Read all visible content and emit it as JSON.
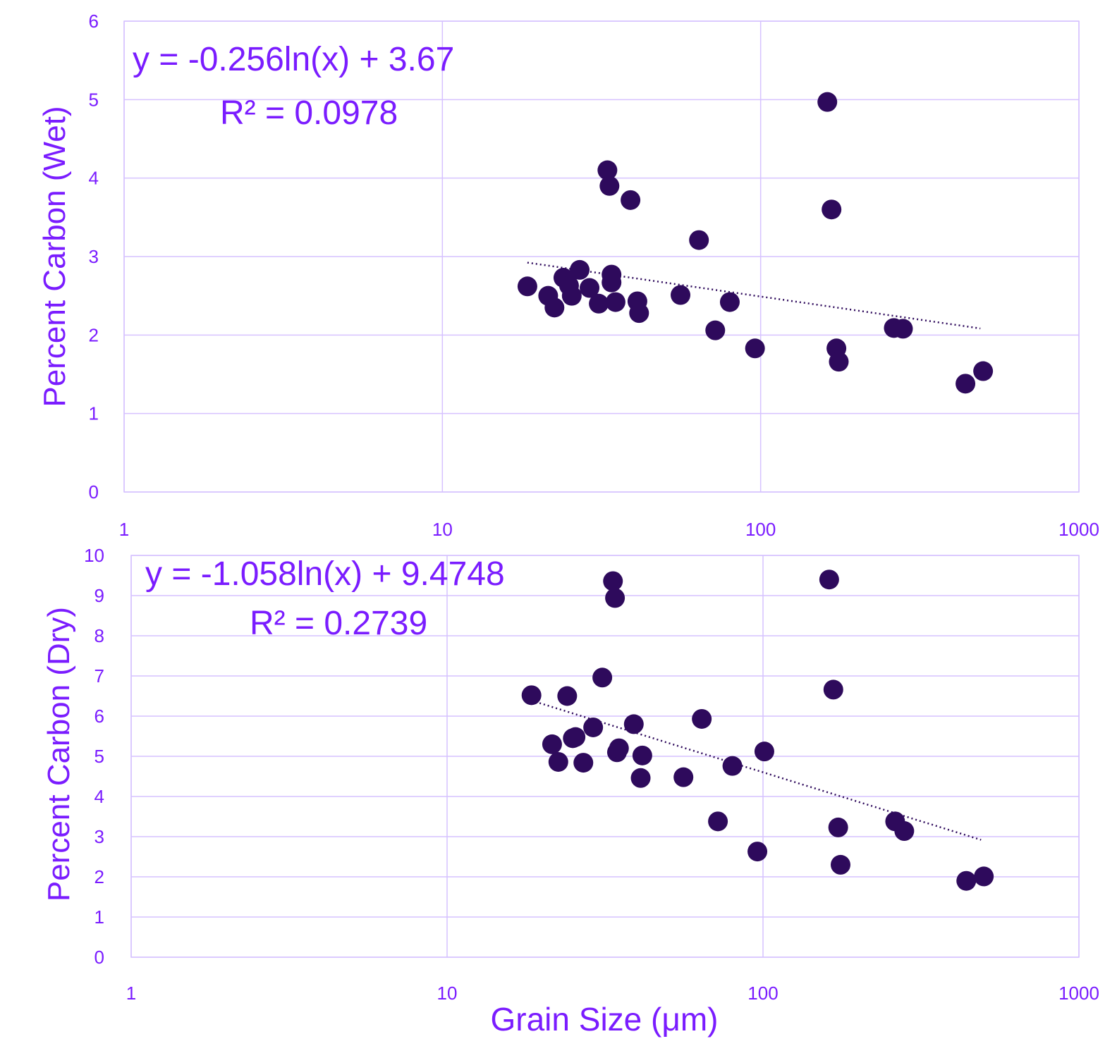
{
  "colors": {
    "marker": "#2e0a5c",
    "text": "#7a1cff",
    "grid": "#d6c2ff",
    "trendline": "#2e0a5c"
  },
  "chart_data": [
    {
      "type": "scatter",
      "title": "",
      "xlabel": "",
      "ylabel": "Percent Carbon (Wet)",
      "x_scale": "log",
      "xlim": [
        1,
        1000
      ],
      "ylim": [
        0,
        6
      ],
      "x_ticks": [
        "1",
        "10",
        "100",
        "1000"
      ],
      "y_ticks": [
        "0",
        "1",
        "2",
        "3",
        "4",
        "5",
        "6"
      ],
      "grid": true,
      "trendline": {
        "type": "logarithmic",
        "style": "dotted",
        "x_range": [
          18.5,
          490
        ]
      },
      "annotations": [
        "y = -0.256ln(x) + 3.67",
        "R² = 0.0978"
      ],
      "points": [
        {
          "x": 18.5,
          "y": 2.62
        },
        {
          "x": 21.5,
          "y": 2.5
        },
        {
          "x": 22.5,
          "y": 2.35
        },
        {
          "x": 24,
          "y": 2.73
        },
        {
          "x": 25,
          "y": 2.63
        },
        {
          "x": 25.5,
          "y": 2.5
        },
        {
          "x": 27,
          "y": 2.83
        },
        {
          "x": 29,
          "y": 2.6
        },
        {
          "x": 31,
          "y": 2.4
        },
        {
          "x": 33,
          "y": 4.1
        },
        {
          "x": 33.5,
          "y": 3.9
        },
        {
          "x": 34,
          "y": 2.77
        },
        {
          "x": 34,
          "y": 2.67
        },
        {
          "x": 35,
          "y": 2.42
        },
        {
          "x": 39,
          "y": 3.72
        },
        {
          "x": 41,
          "y": 2.43
        },
        {
          "x": 41.5,
          "y": 2.28
        },
        {
          "x": 56,
          "y": 2.51
        },
        {
          "x": 64,
          "y": 3.21
        },
        {
          "x": 72,
          "y": 2.06
        },
        {
          "x": 80,
          "y": 2.42
        },
        {
          "x": 96,
          "y": 1.83
        },
        {
          "x": 162,
          "y": 4.97
        },
        {
          "x": 167,
          "y": 3.6
        },
        {
          "x": 173,
          "y": 1.83
        },
        {
          "x": 176,
          "y": 1.66
        },
        {
          "x": 262,
          "y": 2.09
        },
        {
          "x": 280,
          "y": 2.08
        },
        {
          "x": 440,
          "y": 1.38
        },
        {
          "x": 500,
          "y": 1.54
        }
      ]
    },
    {
      "type": "scatter",
      "title": "",
      "xlabel": "Grain Size (μm)",
      "ylabel": "Percent Carbon (Dry)",
      "x_scale": "log",
      "xlim": [
        1,
        1000
      ],
      "ylim": [
        0,
        10
      ],
      "x_ticks": [
        "1",
        "10",
        "100",
        "1000"
      ],
      "y_ticks": [
        "0",
        "1",
        "2",
        "3",
        "4",
        "5",
        "6",
        "7",
        "8",
        "9",
        "10"
      ],
      "grid": true,
      "trendline": {
        "type": "logarithmic",
        "style": "dotted",
        "x_range": [
          18.5,
          490
        ]
      },
      "annotations": [
        "y = -1.058ln(x) + 9.4748",
        "R² = 0.2739"
      ],
      "points": [
        {
          "x": 18.5,
          "y": 6.52
        },
        {
          "x": 21.5,
          "y": 5.3
        },
        {
          "x": 22.5,
          "y": 4.86
        },
        {
          "x": 24,
          "y": 6.5
        },
        {
          "x": 25,
          "y": 5.45
        },
        {
          "x": 25.5,
          "y": 5.48
        },
        {
          "x": 27,
          "y": 4.84
        },
        {
          "x": 29,
          "y": 5.72
        },
        {
          "x": 31,
          "y": 6.96
        },
        {
          "x": 33.5,
          "y": 9.36
        },
        {
          "x": 34,
          "y": 8.94
        },
        {
          "x": 34.5,
          "y": 5.1
        },
        {
          "x": 35,
          "y": 5.2
        },
        {
          "x": 39,
          "y": 5.8
        },
        {
          "x": 41.5,
          "y": 5.02
        },
        {
          "x": 41,
          "y": 4.46
        },
        {
          "x": 56,
          "y": 4.48
        },
        {
          "x": 64,
          "y": 5.93
        },
        {
          "x": 72,
          "y": 3.38
        },
        {
          "x": 80,
          "y": 4.76
        },
        {
          "x": 96,
          "y": 2.63
        },
        {
          "x": 101,
          "y": 5.12
        },
        {
          "x": 162,
          "y": 9.4
        },
        {
          "x": 167,
          "y": 6.66
        },
        {
          "x": 173,
          "y": 3.23
        },
        {
          "x": 176,
          "y": 2.3
        },
        {
          "x": 262,
          "y": 3.38
        },
        {
          "x": 280,
          "y": 3.14
        },
        {
          "x": 440,
          "y": 1.9
        },
        {
          "x": 500,
          "y": 2.01
        }
      ]
    }
  ]
}
